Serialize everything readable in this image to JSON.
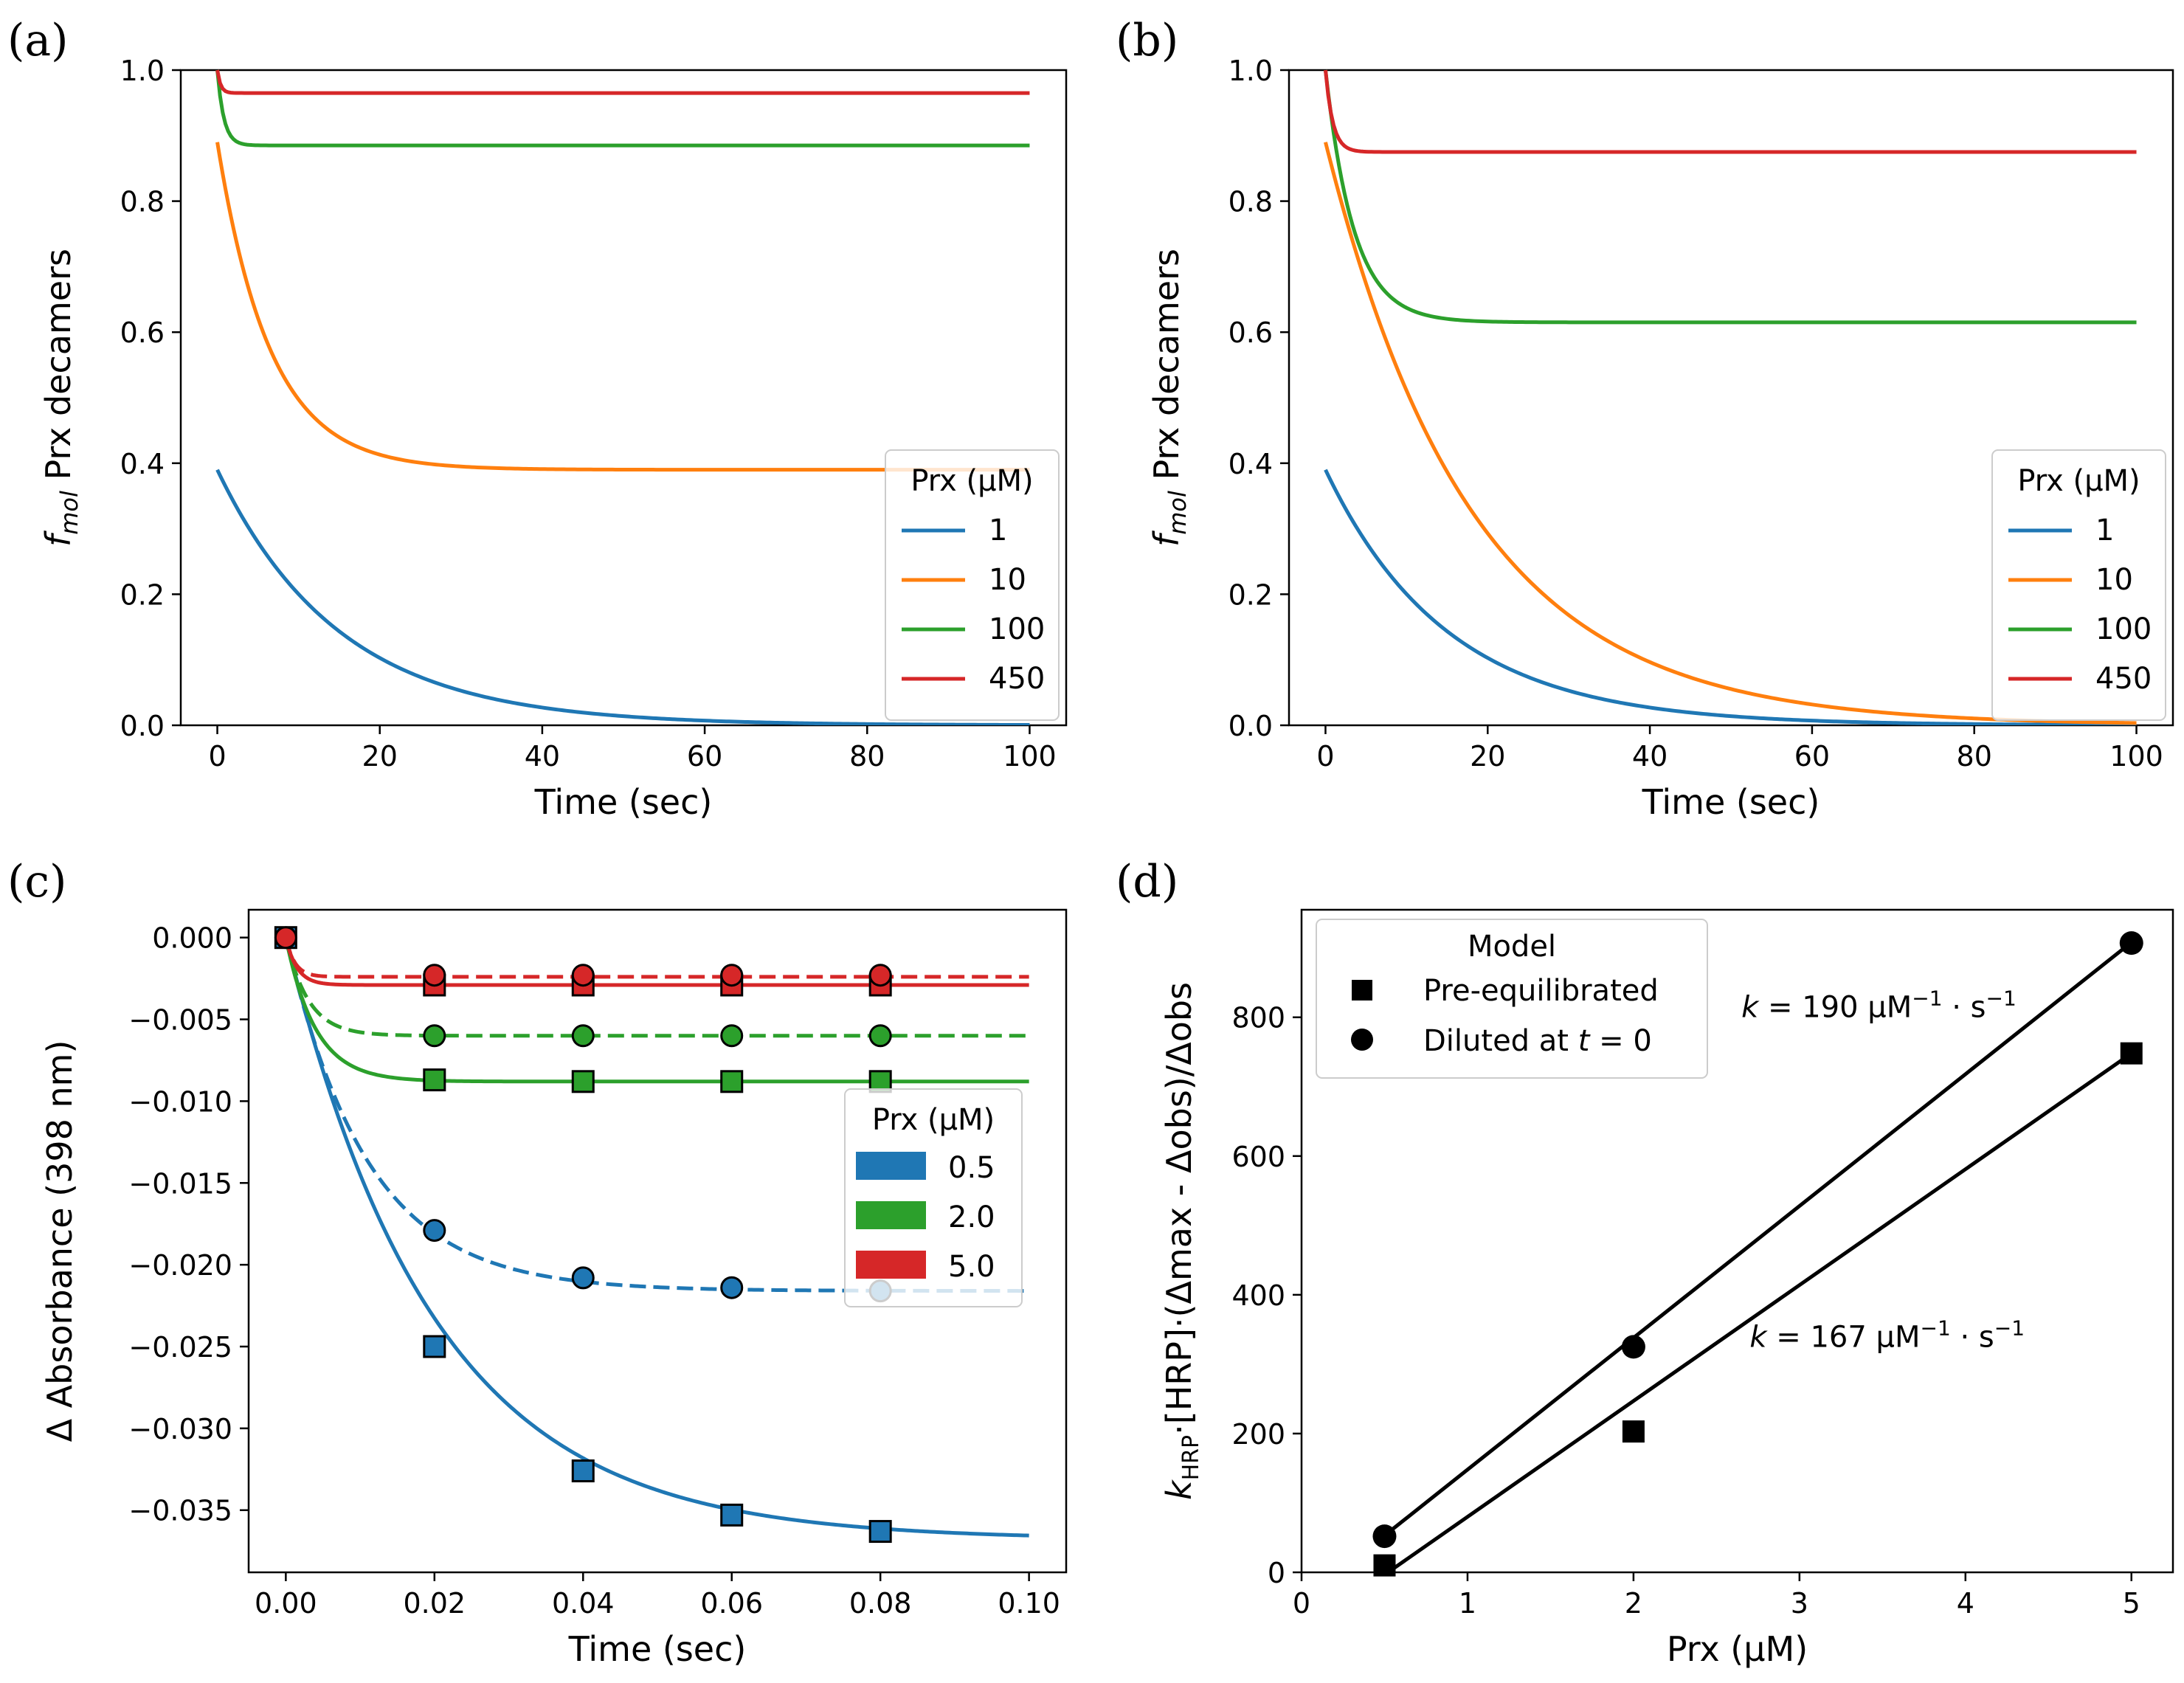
{
  "colors": {
    "blue": "#1f77b4",
    "orange": "#ff7f0e",
    "green": "#2ca02c",
    "red": "#d62728",
    "black": "#000000"
  },
  "chart_data": [
    {
      "panel": "(a)",
      "type": "line",
      "xlabel": "Time (sec)",
      "ylabel_prefix": "f",
      "ylabel_sub": "mol",
      "ylabel_rest": " Prx decamers",
      "xlim": [
        -4.5,
        104.5
      ],
      "ylim": [
        0,
        1
      ],
      "xticks": [
        0,
        20,
        40,
        60,
        80,
        100
      ],
      "yticks": [
        0.0,
        0.2,
        0.4,
        0.6,
        0.8,
        1.0
      ],
      "xtick_labels": [
        "0",
        "20",
        "40",
        "60",
        "80",
        "100"
      ],
      "ytick_labels": [
        "0.0",
        "0.2",
        "0.4",
        "0.6",
        "0.8",
        "1.0"
      ],
      "legend": {
        "title": "Prx (μM)",
        "position": "center-right"
      },
      "series": [
        {
          "name": "1",
          "color": "#1f77b4",
          "y0": 0.39,
          "yinf": 0.0,
          "tau": 15
        },
        {
          "name": "10",
          "color": "#ff7f0e",
          "y0": 0.89,
          "yinf": 0.39,
          "tau": 6.5
        },
        {
          "name": "100",
          "color": "#2ca02c",
          "y0": 1.0,
          "yinf": 0.885,
          "tau": 0.8
        },
        {
          "name": "450",
          "color": "#d62728",
          "y0": 1.0,
          "yinf": 0.965,
          "tau": 0.4
        }
      ]
    },
    {
      "panel": "(b)",
      "type": "line",
      "xlabel": "Time (sec)",
      "ylabel_prefix": "f",
      "ylabel_sub": "mol",
      "ylabel_rest": " Prx decamers",
      "xlim": [
        -4.5,
        104.5
      ],
      "ylim": [
        0,
        1
      ],
      "xticks": [
        0,
        20,
        40,
        60,
        80,
        100
      ],
      "yticks": [
        0.0,
        0.2,
        0.4,
        0.6,
        0.8,
        1.0
      ],
      "xtick_labels": [
        "0",
        "20",
        "40",
        "60",
        "80",
        "100"
      ],
      "ytick_labels": [
        "0.0",
        "0.2",
        "0.4",
        "0.6",
        "0.8",
        "1.0"
      ],
      "legend": {
        "title": "Prx (μM)",
        "position": "center-right"
      },
      "series": [
        {
          "name": "1",
          "color": "#1f77b4",
          "y0": 0.39,
          "yinf": 0.0,
          "tau": 15
        },
        {
          "name": "10",
          "color": "#ff7f0e",
          "y0": 0.89,
          "yinf": 0.0,
          "tau": 18
        },
        {
          "name": "100",
          "color": "#2ca02c",
          "y0": 1.0,
          "yinf": 0.615,
          "tau": 3.5
        },
        {
          "name": "450",
          "color": "#d62728",
          "y0": 1.0,
          "yinf": 0.875,
          "tau": 0.9
        }
      ]
    },
    {
      "panel": "(c)",
      "type": "line",
      "xlabel": "Time (sec)",
      "ylabel": "Δ Absorbance (398 nm)",
      "xlim": [
        -0.005,
        0.105
      ],
      "ylim": [
        -0.0388,
        0.0017
      ],
      "xticks": [
        0.0,
        0.02,
        0.04,
        0.06,
        0.08,
        0.1
      ],
      "yticks": [
        0.0,
        -0.005,
        -0.01,
        -0.015,
        -0.02,
        -0.025,
        -0.03,
        -0.035
      ],
      "xtick_labels": [
        "0.00",
        "0.02",
        "0.04",
        "0.06",
        "0.08",
        "0.10"
      ],
      "ytick_labels": [
        "0.000",
        "−0.005",
        "−0.010",
        "−0.015",
        "−0.020",
        "−0.025",
        "−0.030",
        "−0.035"
      ],
      "legend": {
        "title": "Prx (μM)",
        "position": "center-right"
      },
      "series": [
        {
          "name": "0.5",
          "color": "#1f77b4",
          "solid": {
            "yinf": -0.0368,
            "tau": 0.02
          },
          "dashed": {
            "yinf": -0.0216,
            "tau": 0.011
          },
          "squares": [
            [
              0,
              0
            ],
            [
              0.02,
              -0.025
            ],
            [
              0.04,
              -0.0326
            ],
            [
              0.06,
              -0.0353
            ],
            [
              0.08,
              -0.0363
            ]
          ],
          "circles": [
            [
              0.02,
              -0.0179
            ],
            [
              0.04,
              -0.0208
            ],
            [
              0.06,
              -0.0214
            ],
            [
              0.08,
              -0.0216
            ]
          ]
        },
        {
          "name": "2.0",
          "color": "#2ca02c",
          "solid": {
            "yinf": -0.0088,
            "tau": 0.004
          },
          "dashed": {
            "yinf": -0.006,
            "tau": 0.003
          },
          "squares": [
            [
              0.02,
              -0.0087
            ],
            [
              0.04,
              -0.0088
            ],
            [
              0.06,
              -0.0088
            ],
            [
              0.08,
              -0.0088
            ]
          ],
          "circles": [
            [
              0.02,
              -0.006
            ],
            [
              0.04,
              -0.006
            ],
            [
              0.06,
              -0.006
            ],
            [
              0.08,
              -0.006
            ]
          ]
        },
        {
          "name": "5.0",
          "color": "#d62728",
          "solid": {
            "yinf": -0.0029,
            "tau": 0.0015
          },
          "dashed": {
            "yinf": -0.0024,
            "tau": 0.0012
          },
          "squares": [
            [
              0.02,
              -0.0029
            ],
            [
              0.04,
              -0.0029
            ],
            [
              0.06,
              -0.0029
            ],
            [
              0.08,
              -0.0029
            ]
          ],
          "circles": [
            [
              0,
              0
            ],
            [
              0.02,
              -0.0023
            ],
            [
              0.04,
              -0.0023
            ],
            [
              0.06,
              -0.0023
            ],
            [
              0.08,
              -0.0023
            ]
          ]
        }
      ]
    },
    {
      "panel": "(d)",
      "type": "scatter",
      "xlabel": "Prx (μM)",
      "ylabel": "k_HRP·[HRP]·(Δmax - Δobs)/Δobs",
      "ylabel_k": "k",
      "ylabel_sub": "HRP",
      "ylabel_rest": "·[HRP]·(Δmax - Δobs)/Δobs",
      "xlim": [
        0,
        5.25
      ],
      "ylim": [
        0,
        955
      ],
      "xticks": [
        0,
        1,
        2,
        3,
        4,
        5
      ],
      "yticks": [
        0,
        200,
        400,
        600,
        800
      ],
      "xtick_labels": [
        "0",
        "1",
        "2",
        "3",
        "4",
        "5"
      ],
      "ytick_labels": [
        "0",
        "200",
        "400",
        "600",
        "800"
      ],
      "legend": {
        "title": "Model",
        "position": "top-left",
        "items": [
          "Pre-equilibrated",
          "Diluted at t = 0"
        ]
      },
      "series": [
        {
          "name": "Pre-equilibrated",
          "marker": "square",
          "x": [
            0.5,
            2.0,
            5.0
          ],
          "y": [
            10,
            203,
            748
          ],
          "fit_slope": 167,
          "fit_intercept": -87
        },
        {
          "name": "Diluted at t = 0",
          "marker": "circle",
          "x": [
            0.5,
            2.0,
            5.0
          ],
          "y": [
            52,
            325,
            907
          ],
          "fit_slope": 190,
          "fit_intercept": -42
        }
      ],
      "annotations": [
        {
          "k": "k",
          "eq": " = 190 μM",
          "sup1": "−1",
          "mid": " · s",
          "sup2": "−1",
          "x": 2.65,
          "y": 800
        },
        {
          "k": "k",
          "eq": " = 167 μM",
          "sup1": "−1",
          "mid": " · s",
          "sup2": "−1",
          "x": 2.7,
          "y": 325
        }
      ]
    }
  ]
}
